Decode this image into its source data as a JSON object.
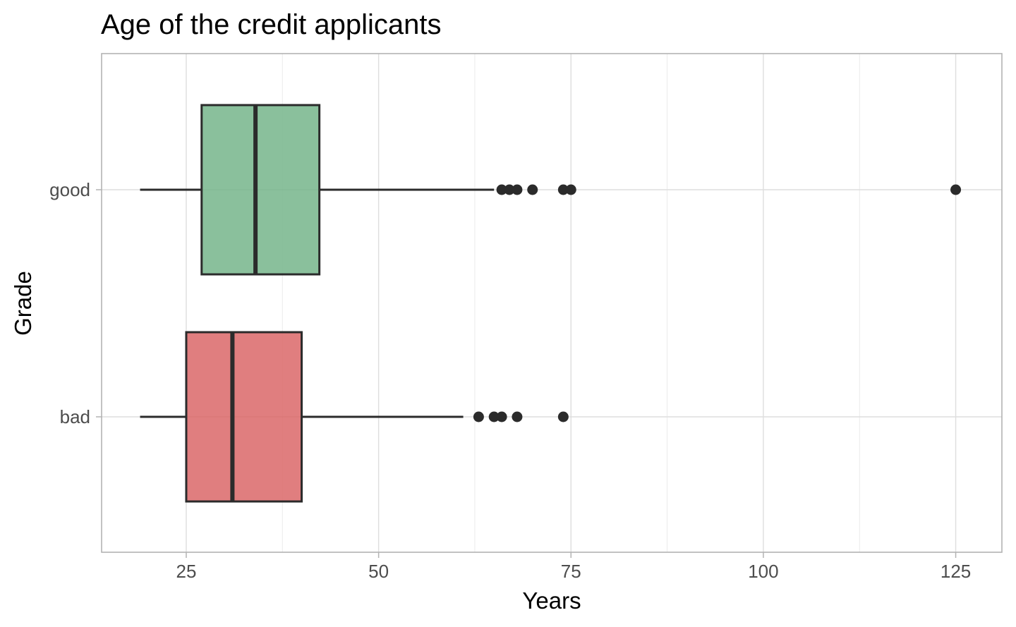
{
  "chart_data": {
    "type": "boxplot",
    "orientation": "horizontal",
    "title": "Age of the credit applicants",
    "xlabel": "Years",
    "ylabel": "Grade",
    "xlim": [
      14,
      131
    ],
    "x_ticks": [
      25,
      50,
      75,
      100,
      125
    ],
    "x_tick_labels": [
      "25",
      "50",
      "75",
      "100",
      "125"
    ],
    "grid": true,
    "legend": "none",
    "categories": [
      "good",
      "bad"
    ],
    "series": [
      {
        "category": "good",
        "color": "#70B286",
        "whisker_low": 19,
        "q1": 27,
        "median": 34,
        "q3": 42.3,
        "whisker_high": 65,
        "outliers": [
          66,
          67,
          68,
          70,
          74,
          75,
          125
        ]
      },
      {
        "category": "bad",
        "color": "#D96163",
        "whisker_low": 19,
        "q1": 25,
        "median": 31,
        "q3": 40,
        "whisker_high": 61,
        "outliers": [
          63,
          65,
          66,
          68,
          74
        ]
      }
    ]
  }
}
